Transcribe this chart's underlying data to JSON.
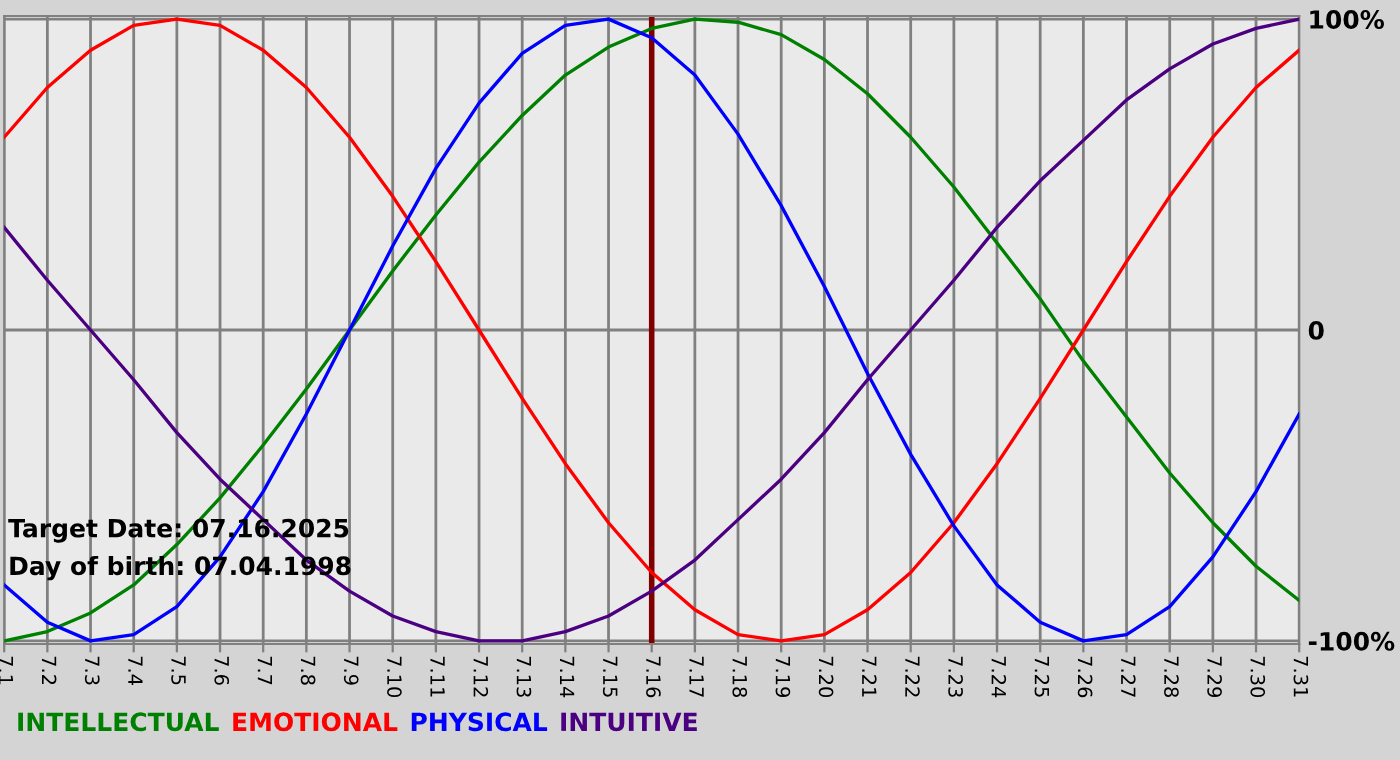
{
  "chart_data": {
    "type": "line",
    "categories": [
      "7.1",
      "7.2",
      "7.3",
      "7.4",
      "7.5",
      "7.6",
      "7.7",
      "7.8",
      "7.9",
      "7.10",
      "7.11",
      "7.12",
      "7.13",
      "7.14",
      "7.15",
      "7.16",
      "7.17",
      "7.18",
      "7.19",
      "7.20",
      "7.21",
      "7.22",
      "7.23",
      "7.24",
      "7.25",
      "7.26",
      "7.27",
      "7.28",
      "7.29",
      "7.30",
      "7.31"
    ],
    "series": [
      {
        "name": "INTELLECTUAL",
        "color": "#008000",
        "values": [
          -100,
          -97,
          -91,
          -82,
          -69,
          -54,
          -37,
          -19,
          0,
          19,
          37,
          54,
          69,
          82,
          91,
          97,
          100,
          99,
          95,
          87,
          76,
          62,
          46,
          28,
          10,
          -10,
          -28,
          -46,
          -62,
          -76,
          -87
        ]
      },
      {
        "name": "EMOTIONAL",
        "color": "#ff0000",
        "values": [
          62,
          78,
          90,
          98,
          100,
          98,
          90,
          78,
          62,
          43,
          22,
          0,
          -22,
          -43,
          -62,
          -78,
          -90,
          -98,
          -100,
          -98,
          -90,
          -78,
          -62,
          -43,
          -22,
          0,
          22,
          43,
          62,
          78,
          90
        ]
      },
      {
        "name": "PHYSICAL",
        "color": "#0000ff",
        "values": [
          -82,
          -94,
          -100,
          -98,
          -89,
          -73,
          -52,
          -27,
          0,
          27,
          52,
          73,
          89,
          98,
          100,
          94,
          82,
          63,
          40,
          14,
          -14,
          -40,
          -63,
          -82,
          -94,
          -100,
          -98,
          -89,
          -73,
          -52,
          -27
        ]
      },
      {
        "name": "INTUITIVE",
        "color": "#4b0082",
        "values": [
          33,
          16,
          0,
          -16,
          -33,
          -48,
          -61,
          -74,
          -84,
          -92,
          -97,
          -100,
          -100,
          -97,
          -92,
          -84,
          -74,
          -61,
          -48,
          -33,
          -16,
          0,
          16,
          33,
          48,
          61,
          74,
          84,
          92,
          97,
          100
        ]
      }
    ],
    "ylim": [
      -101,
      101
    ],
    "yticks": [
      {
        "value": -100,
        "label": "-100%"
      },
      0,
      {
        "value": 100,
        "label": "100%"
      }
    ],
    "grid": true,
    "legend": "bottom",
    "marker": "none",
    "line_style": "solid",
    "ref_lines": [
      {
        "axis": "x",
        "value": "7.16",
        "color": "#800000"
      }
    ],
    "annotations": [
      "Target Date: 07.16.2025",
      "Day of birth: 07.04.1998"
    ]
  }
}
